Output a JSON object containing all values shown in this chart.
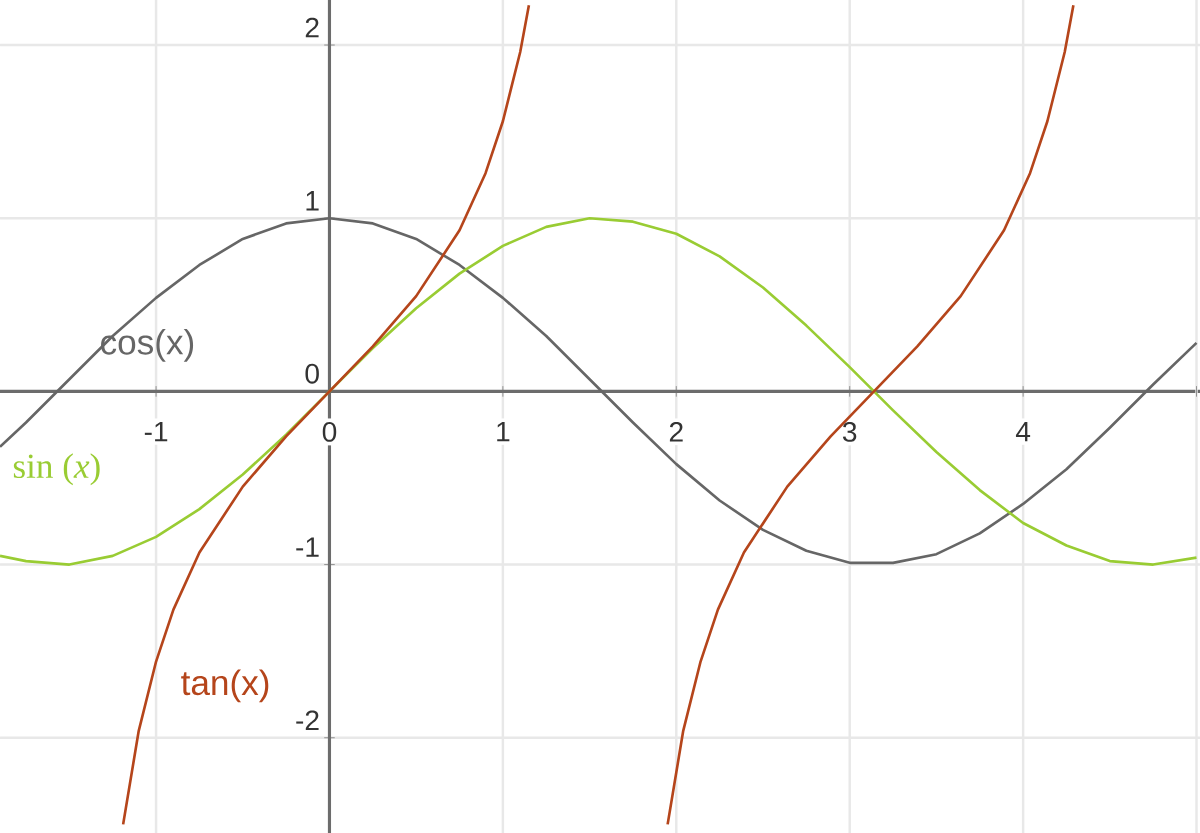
{
  "chart_data": {
    "type": "line",
    "xlim": [
      -1.9,
      5.02
    ],
    "ylim": [
      -2.55,
      2.26
    ],
    "xticks": [
      -1,
      0,
      1,
      2,
      3,
      4,
      {
        "value": 5,
        "label": null
      }
    ],
    "yticks": [
      -2,
      -1,
      0,
      1,
      2
    ],
    "grid": true,
    "legend": false,
    "marker": "none",
    "line_style": "solid",
    "series": [
      {
        "name": "cos(x)",
        "color": "#666666",
        "x": [
          -1.9,
          -1.75,
          -1.5,
          -1.25,
          -1,
          -0.75,
          -0.5,
          -0.25,
          0,
          0.25,
          0.5,
          0.75,
          1,
          1.25,
          1.5,
          1.75,
          2,
          2.25,
          2.5,
          2.75,
          3,
          3.25,
          3.5,
          3.75,
          4,
          4.25,
          4.5,
          4.75,
          5
        ],
        "values": [
          -0.32,
          -0.18,
          0.07,
          0.32,
          0.54,
          0.73,
          0.88,
          0.97,
          1,
          0.97,
          0.88,
          0.73,
          0.54,
          0.32,
          0.07,
          -0.18,
          -0.42,
          -0.63,
          -0.8,
          -0.92,
          -0.99,
          -0.99,
          -0.94,
          -0.82,
          -0.65,
          -0.45,
          -0.21,
          0.04,
          0.28
        ]
      },
      {
        "name": "sin (*x*)",
        "color": "#99cc33",
        "x": [
          -1.9,
          -1.75,
          -1.5,
          -1.25,
          -1,
          -0.75,
          -0.5,
          -0.25,
          0,
          0.25,
          0.5,
          0.75,
          1,
          1.25,
          1.5,
          1.75,
          2,
          2.25,
          2.5,
          2.75,
          3,
          3.25,
          3.5,
          3.75,
          4,
          4.25,
          4.5,
          4.75,
          5
        ],
        "values": [
          -0.95,
          -0.98,
          -1.0,
          -0.95,
          -0.84,
          -0.68,
          -0.48,
          -0.25,
          0,
          0.25,
          0.48,
          0.68,
          0.84,
          0.95,
          1.0,
          0.98,
          0.91,
          0.78,
          0.6,
          0.38,
          0.14,
          -0.11,
          -0.35,
          -0.57,
          -0.76,
          -0.89,
          -0.98,
          -1.0,
          -0.96
        ]
      },
      {
        "name": "tan(x)",
        "color": "#b5451b",
        "x": [
          -1.19,
          -1.1,
          -1.0,
          -0.9,
          -0.75,
          -0.5,
          -0.25,
          0,
          0.25,
          0.5,
          0.75,
          0.9,
          1.0,
          1.1,
          1.15,
          1.57,
          1.95,
          2.04,
          2.14,
          2.24,
          2.39,
          2.64,
          2.89,
          3.14,
          3.39,
          3.64,
          3.89,
          4.04,
          4.14,
          4.24,
          4.29
        ],
        "values": [
          -2.5,
          -1.96,
          -1.56,
          -1.26,
          -0.93,
          -0.55,
          -0.26,
          0,
          0.26,
          0.55,
          0.93,
          1.26,
          1.56,
          1.96,
          2.23,
          null,
          -2.5,
          -1.96,
          -1.56,
          -1.26,
          -0.93,
          -0.55,
          -0.26,
          0,
          0.26,
          0.55,
          0.93,
          1.26,
          1.56,
          1.96,
          2.23
        ]
      }
    ]
  }
}
